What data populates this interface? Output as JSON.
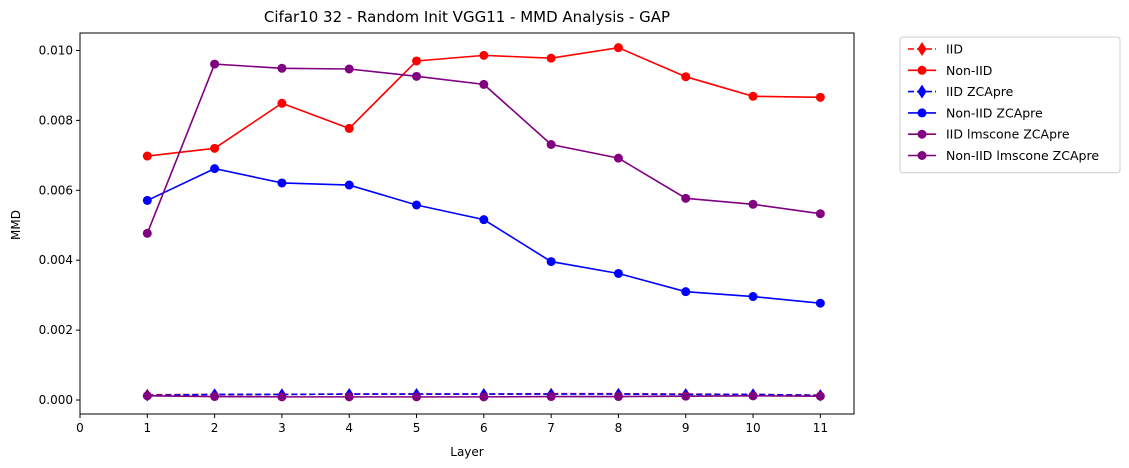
{
  "chart_data": {
    "type": "line",
    "title": "Cifar10 32 - Random Init VGG11 - MMD Analysis - GAP",
    "xlabel": "Layer",
    "ylabel": "MMD",
    "xlim": [
      0,
      11.5
    ],
    "ylim": [
      -0.0004,
      0.0105
    ],
    "xticks": [
      "0",
      "1",
      "2",
      "3",
      "4",
      "5",
      "6",
      "7",
      "8",
      "9",
      "10",
      "11"
    ],
    "yticks": [
      "0.000",
      "0.002",
      "0.004",
      "0.006",
      "0.008",
      "0.010"
    ],
    "grid": false,
    "legend_position": "outside-top-right",
    "x": [
      1,
      2,
      3,
      4,
      5,
      6,
      7,
      8,
      9,
      10,
      11
    ],
    "series": [
      {
        "name": "IID",
        "color": "#ff0000",
        "linestyle": "dashed",
        "marker": "diamond",
        "values": [
          0.00015,
          0.00016,
          0.00016,
          0.00017,
          0.00017,
          0.00017,
          0.00018,
          0.00018,
          0.00017,
          0.00016,
          0.00014
        ]
      },
      {
        "name": "Non-IID",
        "color": "#ff0000",
        "linestyle": "solid",
        "marker": "circle",
        "values": [
          0.00698,
          0.0072,
          0.00849,
          0.00777,
          0.0097,
          0.00986,
          0.00978,
          0.01008,
          0.00925,
          0.00869,
          0.00866
        ]
      },
      {
        "name": "IID ZCApre",
        "color": "#0000ff",
        "linestyle": "dashed",
        "marker": "diamond",
        "values": [
          0.00013,
          0.00016,
          0.00016,
          0.00017,
          0.00017,
          0.00017,
          0.00017,
          0.00017,
          0.00016,
          0.00016,
          0.00013
        ]
      },
      {
        "name": "Non-IID ZCApre",
        "color": "#0000ff",
        "linestyle": "solid",
        "marker": "circle",
        "values": [
          0.00571,
          0.00662,
          0.00621,
          0.00615,
          0.00558,
          0.00516,
          0.00396,
          0.00362,
          0.0031,
          0.00296,
          0.00277
        ]
      },
      {
        "name": "IID lmscone ZCApre",
        "color": "#800080",
        "linestyle": "solid",
        "marker": "circle",
        "values": [
          0.00012,
          0.0001,
          9e-05,
          9e-05,
          9e-05,
          9e-05,
          0.0001,
          0.0001,
          0.00011,
          0.00012,
          0.00011
        ]
      },
      {
        "name": "Non-IID lmscone ZCApre",
        "color": "#800080",
        "linestyle": "solid",
        "marker": "circle",
        "values": [
          0.00477,
          0.00961,
          0.00949,
          0.00947,
          0.00926,
          0.00903,
          0.00731,
          0.00692,
          0.00577,
          0.0056,
          0.00533
        ]
      }
    ]
  }
}
